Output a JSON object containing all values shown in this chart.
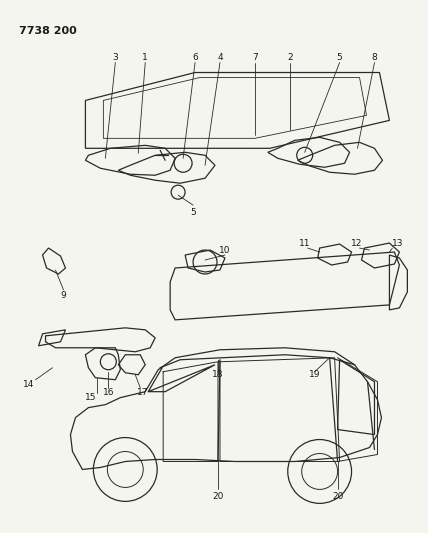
{
  "title_code": "7738 200",
  "bg_color": "#f5f5f0",
  "line_color": "#2a2a2a",
  "text_color": "#1a1a1a",
  "fig_width": 4.28,
  "fig_height": 5.33,
  "dpi": 100
}
